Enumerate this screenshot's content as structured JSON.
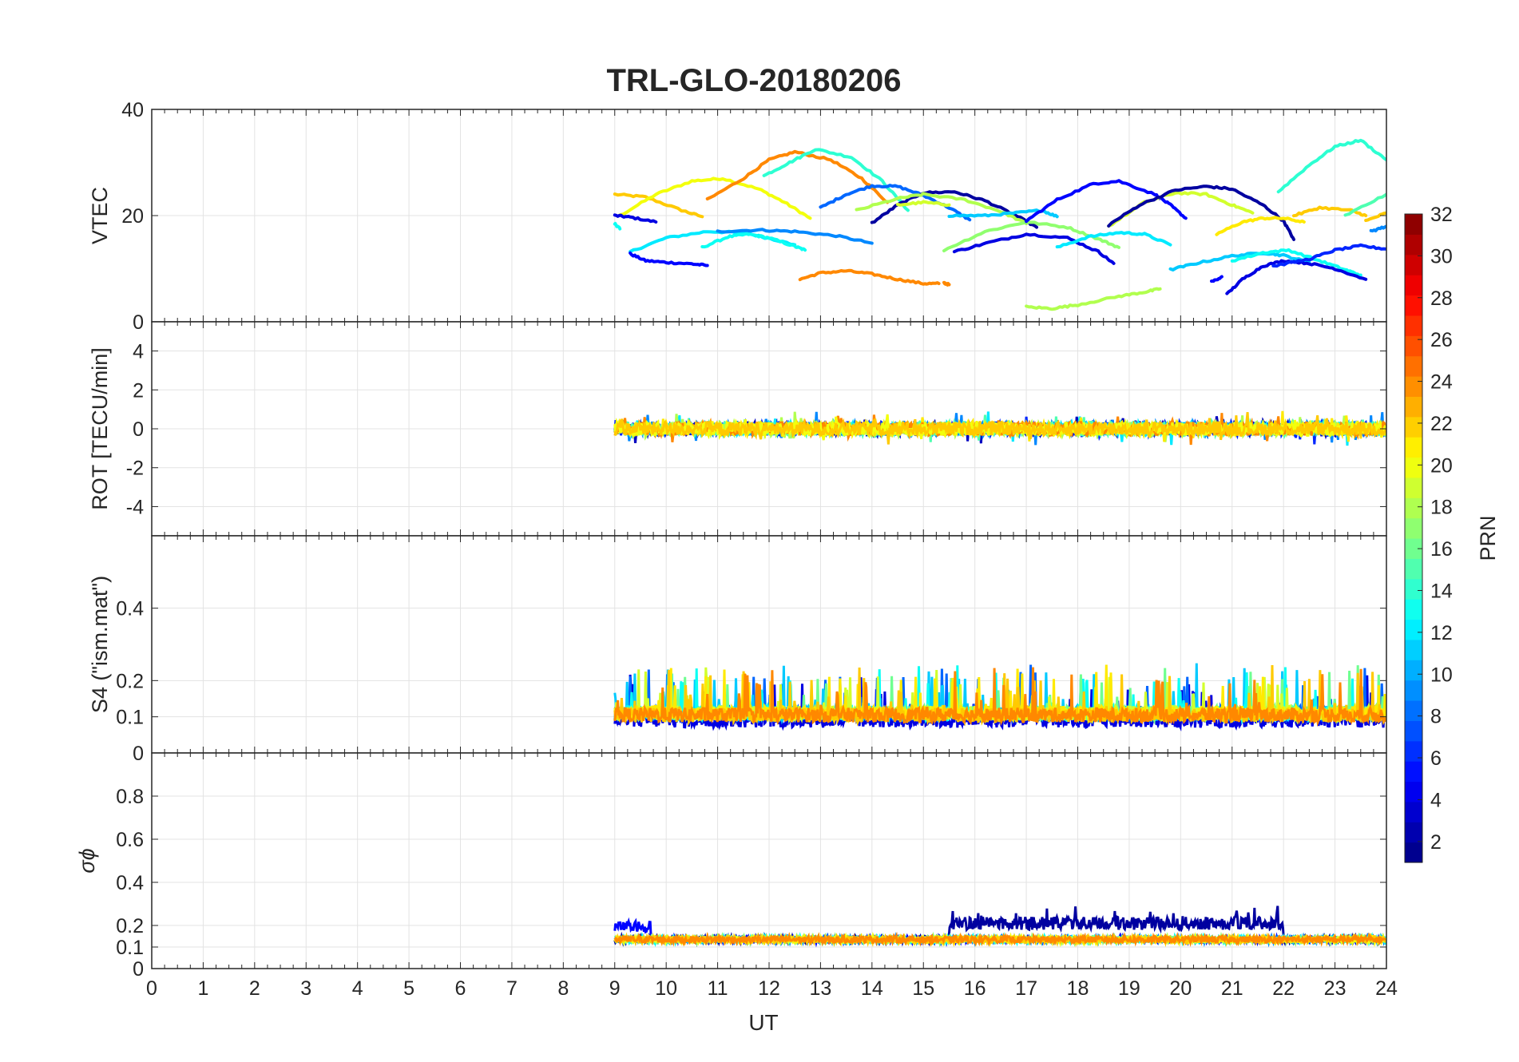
{
  "chart_data": {
    "type": "line",
    "title": "TRL-GLO-20180206",
    "xlabel": "UT",
    "xlim": [
      0,
      24
    ],
    "x_ticks": [
      "0",
      "1",
      "2",
      "3",
      "4",
      "5",
      "6",
      "7",
      "8",
      "9",
      "10",
      "11",
      "12",
      "13",
      "14",
      "15",
      "16",
      "17",
      "18",
      "19",
      "20",
      "21",
      "22",
      "23",
      "24"
    ],
    "grid": true,
    "colorbar": {
      "label": "PRN",
      "range": [
        1,
        32
      ],
      "colormap": "jet",
      "ticks": [
        "2",
        "4",
        "6",
        "8",
        "10",
        "12",
        "14",
        "16",
        "18",
        "20",
        "22",
        "24",
        "26",
        "28",
        "30",
        "32"
      ]
    },
    "panels": [
      {
        "ylabel": "VTEC",
        "ylim": [
          0,
          40
        ],
        "y_ticks": [
          "0",
          "20",
          "40"
        ],
        "series": [
          {
            "prn": 22,
            "points": [
              [
                9.0,
                24
              ],
              [
                9.6,
                23.5
              ],
              [
                10.3,
                21
              ],
              [
                10.7,
                19.8
              ]
            ]
          },
          {
            "prn": 20,
            "points": [
              [
                9.1,
                20
              ],
              [
                9.8,
                24
              ],
              [
                10.5,
                26.5
              ],
              [
                11.1,
                27
              ],
              [
                11.8,
                25
              ],
              [
                12.3,
                22.5
              ],
              [
                12.8,
                19.5
              ]
            ]
          },
          {
            "prn": 4,
            "points": [
              [
                9.0,
                20
              ],
              [
                9.3,
                19.7
              ],
              [
                9.8,
                18.8
              ]
            ]
          },
          {
            "prn": 13,
            "points": [
              [
                9.0,
                18.5
              ],
              [
                9.1,
                17.5
              ]
            ]
          },
          {
            "prn": 12,
            "points": [
              [
                9.3,
                13.2
              ],
              [
                10.0,
                15.8
              ],
              [
                10.8,
                17
              ],
              [
                11.5,
                16.8
              ],
              [
                12.1,
                15.5
              ],
              [
                12.5,
                14.5
              ]
            ]
          },
          {
            "prn": 5,
            "points": [
              [
                9.3,
                12.8
              ],
              [
                9.6,
                11.5
              ],
              [
                10.0,
                11.2
              ],
              [
                10.5,
                10.9
              ],
              [
                10.8,
                10.6
              ]
            ]
          },
          {
            "prn": 13,
            "points": [
              [
                10.7,
                14
              ],
              [
                11.2,
                16
              ],
              [
                11.6,
                16.5
              ],
              [
                12.0,
                15.8
              ],
              [
                12.5,
                14.2
              ],
              [
                12.7,
                13.5
              ]
            ]
          },
          {
            "prn": 9,
            "points": [
              [
                11.0,
                17
              ],
              [
                11.8,
                17.3
              ],
              [
                12.5,
                17
              ],
              [
                13.3,
                16.2
              ],
              [
                14.0,
                14.8
              ]
            ]
          },
          {
            "prn": 24,
            "points": [
              [
                10.8,
                23
              ],
              [
                11.5,
                27
              ],
              [
                12.0,
                30.5
              ],
              [
                12.5,
                32
              ],
              [
                13.2,
                30.5
              ],
              [
                13.8,
                27
              ],
              [
                14.3,
                22.5
              ]
            ]
          },
          {
            "prn": 14,
            "points": [
              [
                11.9,
                27.5
              ],
              [
                12.4,
                30
              ],
              [
                12.9,
                32.5
              ],
              [
                13.6,
                31
              ],
              [
                14.2,
                26.5
              ],
              [
                14.7,
                21
              ]
            ]
          },
          {
            "prn": 24,
            "points": [
              [
                12.6,
                8
              ],
              [
                13.0,
                9.2
              ],
              [
                13.5,
                9.6
              ],
              [
                14.0,
                9.0
              ],
              [
                14.5,
                8.0
              ],
              [
                15.0,
                7.2
              ],
              [
                15.3,
                7.2
              ]
            ]
          },
          {
            "prn": 24,
            "points": [
              [
                15.4,
                7.3
              ],
              [
                15.5,
                7.0
              ]
            ]
          },
          {
            "prn": 8,
            "points": [
              [
                13.0,
                21.5
              ],
              [
                13.5,
                24
              ],
              [
                14.0,
                25.6
              ],
              [
                14.5,
                25.5
              ],
              [
                15.0,
                23.8
              ],
              [
                15.5,
                21.5
              ],
              [
                15.9,
                19.2
              ]
            ]
          },
          {
            "prn": 2,
            "points": [
              [
                14.0,
                18.6
              ],
              [
                14.5,
                22
              ],
              [
                15.0,
                24.3
              ],
              [
                15.6,
                24.5
              ],
              [
                16.2,
                22.8
              ],
              [
                16.8,
                20
              ],
              [
                17.2,
                17.8
              ]
            ]
          },
          {
            "prn": 18,
            "points": [
              [
                13.7,
                21
              ],
              [
                14.5,
                23.2
              ],
              [
                15.0,
                24
              ],
              [
                15.8,
                23
              ],
              [
                16.5,
                20.8
              ],
              [
                17.0,
                18.5
              ]
            ]
          },
          {
            "prn": 19,
            "points": [
              [
                14.5,
                22
              ],
              [
                15.0,
                22.5
              ],
              [
                15.5,
                22
              ]
            ]
          },
          {
            "prn": 11,
            "points": [
              [
                15.5,
                20
              ],
              [
                16.2,
                20
              ],
              [
                16.8,
                20.5
              ],
              [
                17.3,
                21
              ],
              [
                17.6,
                19.8
              ]
            ]
          },
          {
            "prn": 17,
            "points": [
              [
                15.4,
                13.5
              ],
              [
                16.2,
                17
              ],
              [
                17.0,
                18.8
              ],
              [
                17.8,
                17.8
              ],
              [
                18.4,
                15.6
              ],
              [
                18.8,
                14
              ]
            ]
          },
          {
            "prn": 4,
            "points": [
              [
                15.6,
                13.2
              ],
              [
                16.3,
                15
              ],
              [
                17.0,
                16.5
              ],
              [
                17.8,
                15.8
              ],
              [
                18.4,
                13.2
              ],
              [
                18.7,
                11
              ]
            ]
          },
          {
            "prn": 12,
            "points": [
              [
                17.6,
                14
              ],
              [
                18.2,
                16
              ],
              [
                18.8,
                16.8
              ],
              [
                19.3,
                16.5
              ],
              [
                19.8,
                14.5
              ]
            ]
          },
          {
            "prn": 5,
            "points": [
              [
                17.0,
                19
              ],
              [
                17.6,
                23
              ],
              [
                18.3,
                26
              ],
              [
                18.8,
                26.5
              ],
              [
                19.5,
                24
              ],
              [
                19.8,
                22
              ],
              [
                20.1,
                19.5
              ]
            ]
          },
          {
            "prn": 19,
            "points": [
              [
                18.6,
                18
              ],
              [
                19.3,
                22.5
              ],
              [
                19.9,
                24.3
              ],
              [
                20.5,
                24
              ],
              [
                21.0,
                22
              ],
              [
                21.4,
                20.5
              ]
            ]
          },
          {
            "prn": 2,
            "points": [
              [
                18.6,
                18.2
              ],
              [
                19.2,
                22
              ],
              [
                19.9,
                24.8
              ],
              [
                20.5,
                25.5
              ],
              [
                21.0,
                25
              ],
              [
                21.6,
                22
              ],
              [
                22.0,
                19
              ],
              [
                22.2,
                15.5
              ]
            ]
          },
          {
            "prn": 18,
            "points": [
              [
                17.0,
                2.8
              ],
              [
                17.5,
                2.5
              ],
              [
                18.0,
                3.2
              ],
              [
                18.8,
                4.8
              ],
              [
                19.3,
                5.6
              ],
              [
                19.6,
                6.2
              ]
            ]
          },
          {
            "prn": 21,
            "points": [
              [
                20.7,
                16.5
              ],
              [
                21.2,
                18.8
              ],
              [
                21.6,
                19.5
              ],
              [
                22.0,
                19.5
              ],
              [
                22.4,
                18.8
              ]
            ]
          },
          {
            "prn": 11,
            "points": [
              [
                19.8,
                9.8
              ],
              [
                20.3,
                11
              ],
              [
                21.0,
                12.4
              ],
              [
                21.6,
                13
              ],
              [
                22.0,
                12.5
              ],
              [
                22.5,
                11.2
              ]
            ]
          },
          {
            "prn": 13,
            "points": [
              [
                21.0,
                11.5
              ],
              [
                21.6,
                13
              ],
              [
                22.1,
                13.5
              ],
              [
                22.7,
                11.5
              ],
              [
                23.2,
                9.8
              ],
              [
                23.5,
                8.8
              ]
            ]
          },
          {
            "prn": 4,
            "points": [
              [
                20.9,
                5.2
              ],
              [
                21.2,
                8
              ],
              [
                21.6,
                10.5
              ],
              [
                22.0,
                11.5
              ],
              [
                22.5,
                11
              ],
              [
                23.0,
                10
              ],
              [
                23.6,
                8
              ]
            ]
          },
          {
            "prn": 6,
            "points": [
              [
                21.8,
                10.5
              ],
              [
                22.5,
                11.8
              ],
              [
                23.0,
                13.5
              ],
              [
                23.5,
                14.3
              ],
              [
                24.0,
                13.7
              ]
            ]
          },
          {
            "prn": 14,
            "points": [
              [
                21.9,
                24.5
              ],
              [
                22.5,
                29.5
              ],
              [
                23.0,
                33
              ],
              [
                23.5,
                34.2
              ],
              [
                24.0,
                30.5
              ]
            ]
          },
          {
            "prn": 22,
            "points": [
              [
                22.2,
                20
              ],
              [
                22.7,
                21.5
              ],
              [
                23.3,
                21
              ],
              [
                23.6,
                20
              ]
            ]
          },
          {
            "prn": 22,
            "points": [
              [
                23.6,
                19
              ],
              [
                24.0,
                20.5
              ]
            ]
          },
          {
            "prn": 15,
            "points": [
              [
                23.2,
                20
              ],
              [
                24.0,
                24
              ]
            ]
          },
          {
            "prn": 9,
            "points": [
              [
                23.7,
                17
              ],
              [
                24.0,
                18
              ]
            ]
          },
          {
            "prn": 5,
            "points": [
              [
                20.6,
                7.5
              ],
              [
                20.8,
                8.5
              ]
            ]
          }
        ]
      },
      {
        "ylabel": "ROT [TECU/min]",
        "ylim": [
          -5.5,
          5.5
        ],
        "y_ticks": [
          "-4",
          "-2",
          "0",
          "2",
          "4"
        ],
        "series_summary": "Fluctuations around 0 within about ±0.6 TECU/min from 9 to 24 UT for all PRNs"
      },
      {
        "ylabel": "S4 (\"ism.mat\")",
        "ylim": [
          0,
          0.6
        ],
        "y_ticks": [
          "0",
          "0.1",
          "0.2",
          "0.4"
        ],
        "series_summary": "S4 values mostly 0.05–0.15 with spikes to about 0.23 from 9 to 24 UT"
      },
      {
        "ylabel": "σϕ",
        "ylim": [
          0,
          1
        ],
        "y_ticks": [
          "0",
          "0.1",
          "0.2",
          "0.4",
          "0.6",
          "0.8"
        ],
        "series_summary": "Phase scintillation mostly 0.1–0.15; PRN 1–2 elevated to 0.2–0.3 between 15.5 and 22 UT"
      }
    ]
  }
}
